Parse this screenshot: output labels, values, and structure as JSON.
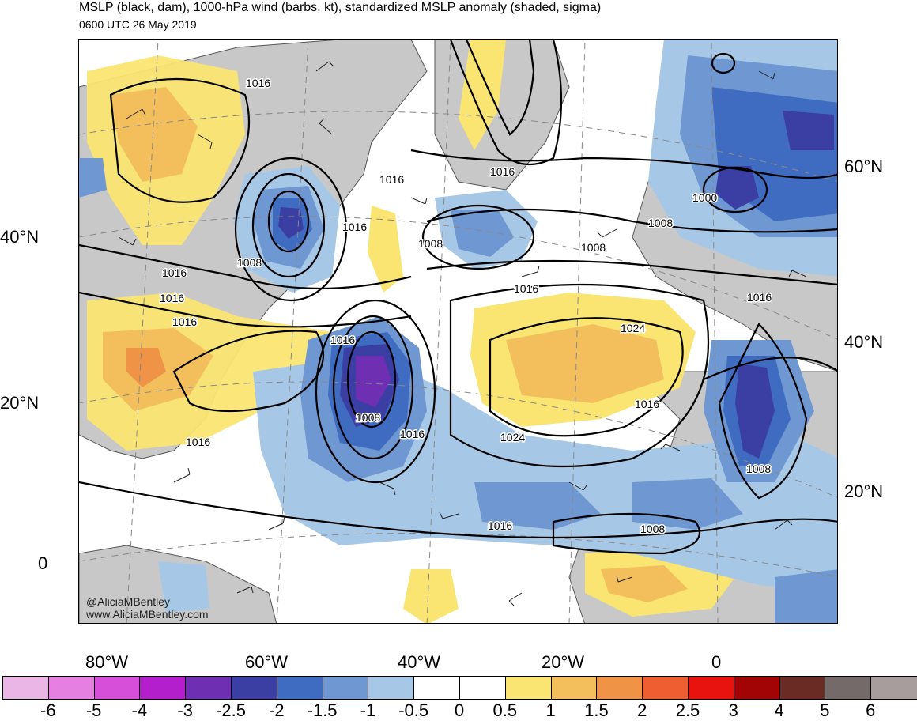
{
  "title": "MSLP (black, dam), 1000-hPa wind (barbs, kt), standardized MSLP anomaly (shaded, sigma)",
  "subtitle": "0600 UTC 26 May 2019",
  "credits": [
    "@AliciaMBentley",
    "www.AliciaMBentley.com"
  ],
  "lat_labels_left": [
    "40°N",
    "20°N",
    "0"
  ],
  "lat_labels_right": [
    "60°N",
    "40°N",
    "20°N"
  ],
  "lon_labels": [
    "80°W",
    "60°W",
    "40°W",
    "20°W",
    "0"
  ],
  "contour_labels": [
    "1016",
    "1016",
    "1016",
    "1016",
    "1016",
    "1008",
    "1016",
    "1016",
    "1016",
    "1024",
    "1016",
    "1024",
    "1016",
    "1008",
    "1016",
    "1008",
    "1000",
    "1008",
    "1016",
    "1008",
    "1008",
    "1016",
    "1016",
    "1008"
  ],
  "colorbar": {
    "ticks": [
      "-6",
      "-5",
      "-4",
      "-3",
      "-2.5",
      "-2",
      "-1.5",
      "-1",
      "-0.5",
      "0",
      "0.5",
      "1",
      "1.5",
      "2",
      "2.5",
      "3",
      "4",
      "5",
      "6"
    ],
    "colors": [
      "#e9b6e6",
      "#e57fe0",
      "#d54fd9",
      "#b31fcb",
      "#6f2fb3",
      "#3b3ea3",
      "#3f6cc0",
      "#6f98d2",
      "#a6c8e6",
      "#ffffff",
      "#ffffff",
      "#fae572",
      "#f2bf5c",
      "#ef9447",
      "#ee5e30",
      "#e8120f",
      "#a20405",
      "#6a2b25",
      "#746a69",
      "#a89d9d"
    ]
  }
}
